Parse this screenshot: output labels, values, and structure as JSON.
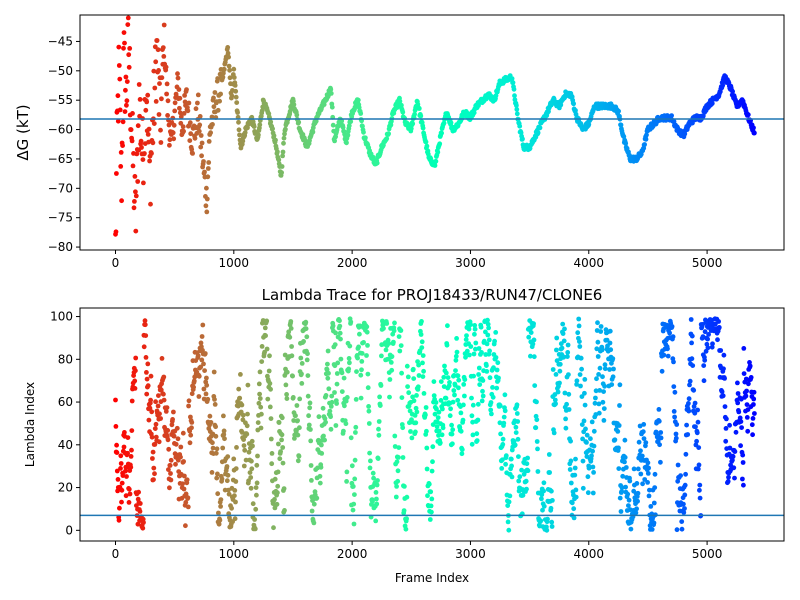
{
  "chart_data": [
    {
      "type": "scatter",
      "title": "",
      "xlabel": "",
      "ylabel": "ΔG (kT)",
      "xlim": [
        -300,
        5650
      ],
      "ylim": [
        -80.5,
        -40.5
      ],
      "x_ticks": [
        0,
        1000,
        2000,
        3000,
        4000,
        5000
      ],
      "y_ticks": [
        -80,
        -75,
        -70,
        -65,
        -60,
        -55,
        -50,
        -45
      ],
      "hline": {
        "y": -58.2,
        "color": "#1f77b4"
      },
      "color_scale": "rainbow (red at frame 0 → violet at frame 5400)",
      "grid": false,
      "legend": "none",
      "trace_anchors": [
        [
          0,
          -80
        ],
        [
          15,
          -60
        ],
        [
          30,
          -50
        ],
        [
          50,
          -70
        ],
        [
          70,
          -48
        ],
        [
          90,
          -55
        ],
        [
          110,
          -45
        ],
        [
          140,
          -62
        ],
        [
          170,
          -76
        ],
        [
          200,
          -55
        ],
        [
          230,
          -65
        ],
        [
          260,
          -52
        ],
        [
          290,
          -68
        ],
        [
          320,
          -58
        ],
        [
          350,
          -46
        ],
        [
          380,
          -60
        ],
        [
          410,
          -44
        ],
        [
          440,
          -56
        ],
        [
          470,
          -63
        ],
        [
          500,
          -57
        ],
        [
          530,
          -52
        ],
        [
          560,
          -60
        ],
        [
          600,
          -55
        ],
        [
          650,
          -62
        ],
        [
          700,
          -57
        ],
        [
          740,
          -66
        ],
        [
          770,
          -72
        ],
        [
          800,
          -60
        ],
        [
          850,
          -55
        ],
        [
          900,
          -52
        ],
        [
          950,
          -46
        ],
        [
          980,
          -55
        ],
        [
          1000,
          -50
        ],
        [
          1030,
          -57
        ],
        [
          1060,
          -63
        ],
        [
          1100,
          -60
        ],
        [
          1150,
          -58
        ],
        [
          1200,
          -62
        ],
        [
          1250,
          -55
        ],
        [
          1300,
          -58
        ],
        [
          1350,
          -62
        ],
        [
          1400,
          -68
        ],
        [
          1430,
          -60
        ],
        [
          1500,
          -55
        ],
        [
          1560,
          -60
        ],
        [
          1620,
          -63
        ],
        [
          1700,
          -58
        ],
        [
          1750,
          -56
        ],
        [
          1820,
          -53
        ],
        [
          1850,
          -62
        ],
        [
          1900,
          -58
        ],
        [
          1950,
          -62
        ],
        [
          2000,
          -57
        ],
        [
          2050,
          -55
        ],
        [
          2100,
          -61
        ],
        [
          2150,
          -64
        ],
        [
          2200,
          -66
        ],
        [
          2250,
          -63
        ],
        [
          2300,
          -61
        ],
        [
          2350,
          -57
        ],
        [
          2400,
          -55
        ],
        [
          2450,
          -59
        ],
        [
          2500,
          -60
        ],
        [
          2550,
          -55
        ],
        [
          2600,
          -60
        ],
        [
          2650,
          -65
        ],
        [
          2700,
          -66
        ],
        [
          2750,
          -61
        ],
        [
          2800,
          -57
        ],
        [
          2850,
          -60
        ],
        [
          2900,
          -59
        ],
        [
          2950,
          -57
        ],
        [
          3000,
          -58
        ],
        [
          3050,
          -56
        ],
        [
          3100,
          -55
        ],
        [
          3150,
          -54
        ],
        [
          3200,
          -55
        ],
        [
          3250,
          -52
        ],
        [
          3350,
          -51
        ],
        [
          3400,
          -58
        ],
        [
          3450,
          -63
        ],
        [
          3500,
          -63
        ],
        [
          3550,
          -61
        ],
        [
          3600,
          -59
        ],
        [
          3650,
          -57
        ],
        [
          3700,
          -55
        ],
        [
          3750,
          -56
        ],
        [
          3800,
          -54
        ],
        [
          3850,
          -54
        ],
        [
          3900,
          -58
        ],
        [
          3950,
          -60
        ],
        [
          4000,
          -59
        ],
        [
          4050,
          -56
        ],
        [
          4100,
          -56
        ],
        [
          4150,
          -56
        ],
        [
          4200,
          -56
        ],
        [
          4250,
          -57
        ],
        [
          4300,
          -62
        ],
        [
          4350,
          -65
        ],
        [
          4400,
          -65
        ],
        [
          4450,
          -64
        ],
        [
          4500,
          -60
        ],
        [
          4550,
          -59
        ],
        [
          4600,
          -58
        ],
        [
          4650,
          -58
        ],
        [
          4700,
          -58
        ],
        [
          4750,
          -60
        ],
        [
          4800,
          -61
        ],
        [
          4850,
          -59
        ],
        [
          4900,
          -58
        ],
        [
          4950,
          -58
        ],
        [
          5000,
          -56
        ],
        [
          5050,
          -55
        ],
        [
          5100,
          -54
        ],
        [
          5150,
          -51
        ],
        [
          5200,
          -53
        ],
        [
          5250,
          -56
        ],
        [
          5300,
          -55
        ],
        [
          5350,
          -58
        ],
        [
          5400,
          -60.5
        ]
      ]
    },
    {
      "type": "scatter",
      "title": "Lambda Trace for PROJ18433/RUN47/CLONE6",
      "xlabel": "Frame Index",
      "ylabel": "Lambda Index",
      "xlim": [
        -300,
        5650
      ],
      "ylim": [
        -5,
        104
      ],
      "x_ticks": [
        0,
        1000,
        2000,
        3000,
        4000,
        5000
      ],
      "y_ticks": [
        0,
        20,
        40,
        60,
        80,
        100
      ],
      "hline": {
        "y": 7,
        "color": "#1f77b4"
      },
      "color_scale": "rainbow (red at frame 0 → violet at frame 5400)",
      "grid": false,
      "legend": "none",
      "x_range_of_points": [
        0,
        5400
      ],
      "y_range_of_points": [
        0,
        99
      ]
    }
  ]
}
